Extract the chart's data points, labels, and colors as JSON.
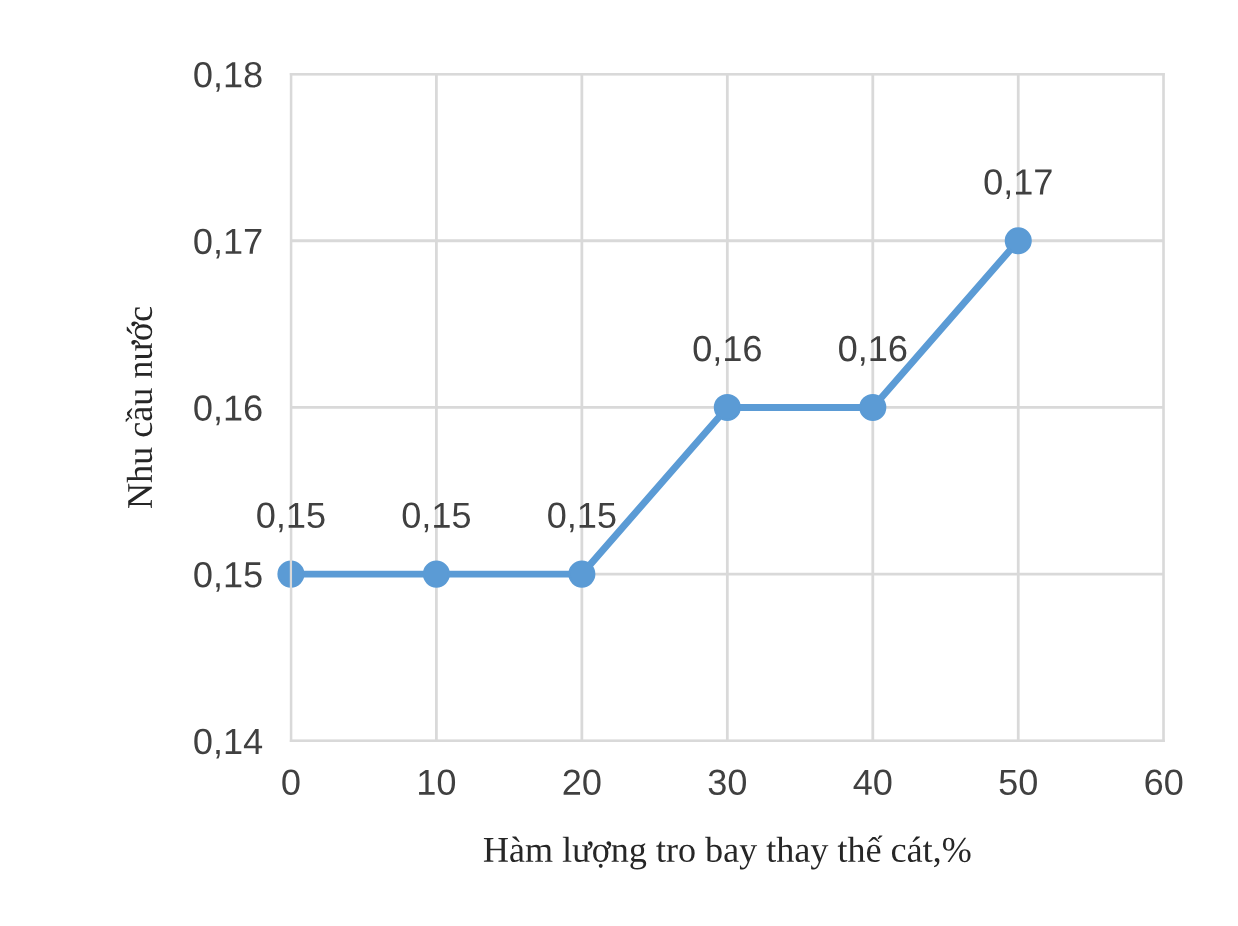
{
  "chart_data": {
    "type": "line",
    "xlabel": "Hàm lượng tro bay thay thế cát,%",
    "ylabel": "Nhu cầu nước",
    "x": [
      0,
      10,
      20,
      30,
      40,
      50
    ],
    "series": [
      {
        "color": "#5b9bd5",
        "values": [
          0.15,
          0.15,
          0.15,
          0.16,
          0.16,
          0.17
        ],
        "value_labels": [
          "0,15",
          "0,15",
          "0,15",
          "0,16",
          "0,16",
          "0,17"
        ]
      }
    ],
    "xlim": [
      0,
      60
    ],
    "xticks": [
      0,
      10,
      20,
      30,
      40,
      50,
      60
    ],
    "ylim": [
      0.14,
      0.18
    ],
    "yticks": [
      {
        "value": 0.14,
        "label": "0,14"
      },
      {
        "value": 0.15,
        "label": "0,15"
      },
      {
        "value": 0.16,
        "label": "0,16"
      },
      {
        "value": 0.17,
        "label": "0,17"
      },
      {
        "value": 0.18,
        "label": "0,18"
      }
    ],
    "grid": true,
    "marker": "circle",
    "line_style": "solid"
  }
}
